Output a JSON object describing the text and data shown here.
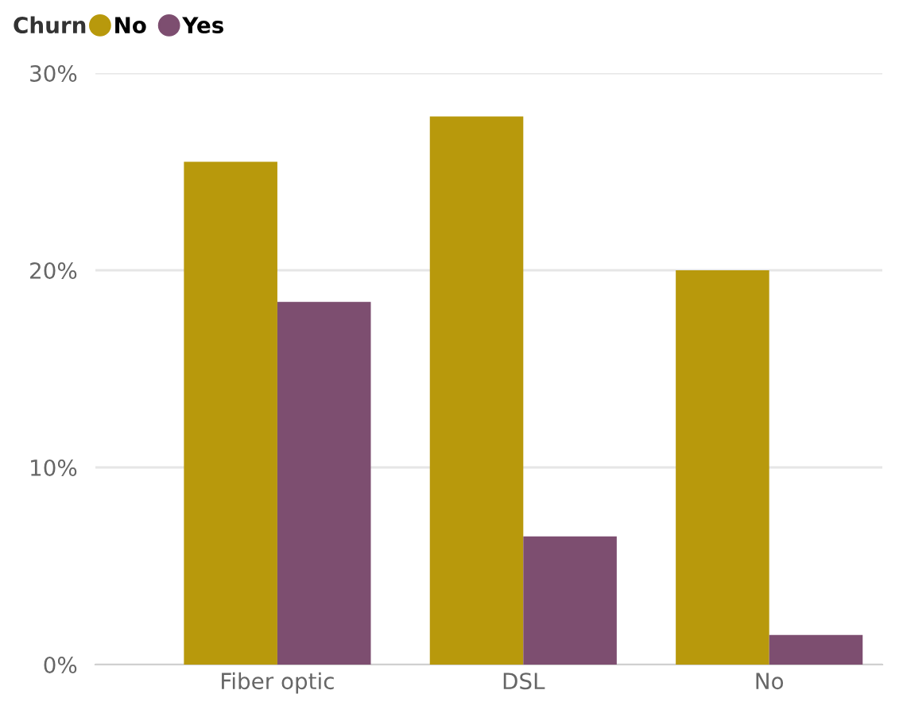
{
  "chart_data": {
    "type": "bar",
    "legend_title": "Churn",
    "legend": "top left",
    "categories": [
      "Fiber optic",
      "DSL",
      "No"
    ],
    "series": [
      {
        "name": "No",
        "color": "#b8990c",
        "values": [
          25.5,
          27.8,
          20.0
        ]
      },
      {
        "name": "Yes",
        "color": "#7d4e70",
        "values": [
          18.4,
          6.5,
          1.5
        ]
      }
    ],
    "ylim": [
      0,
      30
    ],
    "yticks": [
      {
        "value": 0,
        "label": "0%"
      },
      {
        "value": 10,
        "label": "10%"
      },
      {
        "value": 20,
        "label": "20%"
      },
      {
        "value": 30,
        "label": "30%"
      }
    ],
    "grid": "y"
  }
}
